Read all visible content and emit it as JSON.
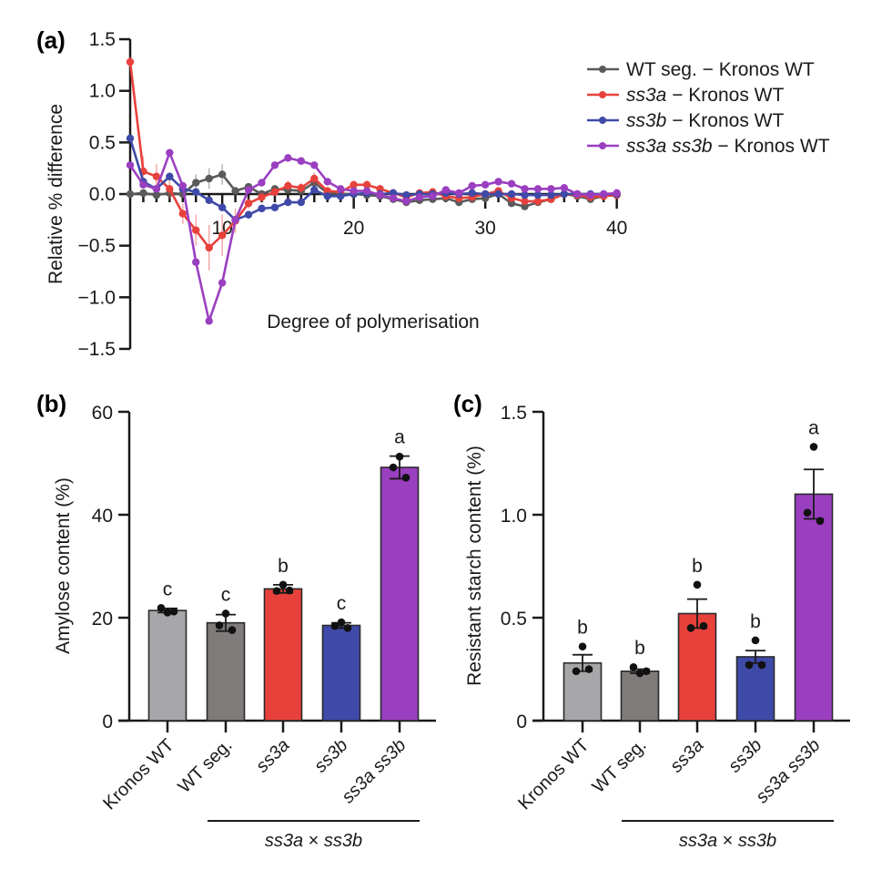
{
  "figure": {
    "panels": [
      "(a)",
      "(b)",
      "(c)"
    ]
  },
  "chart_data": [
    {
      "id": "a",
      "panel_label": "(a)",
      "type": "line",
      "xlabel": "Degree of polymerisation",
      "ylabel": "Relative % difference",
      "xlim": [
        3,
        40
      ],
      "ylim": [
        -1.5,
        1.5
      ],
      "xticks": [
        10,
        20,
        30,
        40
      ],
      "xtick_labels": [
        "10",
        "20",
        "30",
        "40"
      ],
      "yticks": [
        -1.5,
        -1.0,
        -0.5,
        0.0,
        0.5,
        1.0,
        1.5
      ],
      "ytick_labels": [
        "−1.5",
        "−1.0",
        "−0.5",
        "0.0",
        "0.5",
        "1.0",
        "1.5"
      ],
      "grid": false,
      "legend_position": "top-right",
      "x": [
        3,
        4,
        5,
        6,
        7,
        8,
        9,
        10,
        11,
        12,
        13,
        14,
        15,
        16,
        17,
        18,
        19,
        20,
        21,
        22,
        23,
        24,
        25,
        26,
        27,
        28,
        29,
        30,
        31,
        32,
        33,
        34,
        35,
        36,
        37,
        38,
        39,
        40
      ],
      "series": [
        {
          "name": "WT seg. − Kronos WT",
          "name_italic": "",
          "name_rest": "WT seg. − Kronos WT",
          "color": "#5a5a5a",
          "values": [
            0.0,
            0.01,
            -0.01,
            0.01,
            0.0,
            0.11,
            0.15,
            0.19,
            0.03,
            0.07,
            0.0,
            0.05,
            0.04,
            0.03,
            0.11,
            0.01,
            0.0,
            0.0,
            -0.01,
            -0.02,
            -0.05,
            -0.08,
            -0.06,
            -0.05,
            -0.04,
            -0.08,
            -0.05,
            -0.04,
            0.0,
            -0.09,
            -0.12,
            -0.08,
            -0.05,
            0.0,
            -0.02,
            -0.05,
            -0.02,
            -0.01
          ],
          "error": [
            0.01,
            0.02,
            0.03,
            0.03,
            0.03,
            0.08,
            0.1,
            0.1,
            0.04,
            0.03,
            0.03,
            0.03,
            0.03,
            0.03,
            0.04,
            0.03,
            0.02,
            0.02,
            0.02,
            0.02,
            0.03,
            0.03,
            0.03,
            0.02,
            0.02,
            0.03,
            0.02,
            0.02,
            0.02,
            0.03,
            0.03,
            0.02,
            0.02,
            0.02,
            0.02,
            0.02,
            0.02,
            0.02
          ]
        },
        {
          "name": "ss3a − Kronos WT",
          "name_italic": "ss3a",
          "name_rest": " − Kronos WT",
          "color": "#e8413c",
          "values": [
            1.28,
            0.22,
            0.17,
            0.05,
            -0.19,
            -0.35,
            -0.52,
            -0.4,
            -0.26,
            -0.09,
            -0.03,
            0.02,
            0.08,
            0.06,
            0.15,
            0.03,
            0.02,
            0.09,
            0.09,
            0.05,
            0.01,
            -0.03,
            0.01,
            0.02,
            -0.02,
            -0.04,
            -0.03,
            0.0,
            0.03,
            -0.04,
            -0.07,
            -0.07,
            -0.05,
            0.0,
            -0.01,
            -0.03,
            -0.02,
            -0.01
          ],
          "error": [
            0.05,
            0.15,
            0.12,
            0.1,
            0.1,
            0.15,
            0.22,
            0.2,
            0.12,
            0.05,
            0.04,
            0.04,
            0.05,
            0.05,
            0.06,
            0.04,
            0.03,
            0.04,
            0.04,
            0.04,
            0.03,
            0.03,
            0.03,
            0.03,
            0.03,
            0.03,
            0.03,
            0.03,
            0.03,
            0.03,
            0.03,
            0.03,
            0.03,
            0.02,
            0.02,
            0.02,
            0.02,
            0.02
          ]
        },
        {
          "name": "ss3b − Kronos WT",
          "name_italic": "ss3b",
          "name_rest": " − Kronos WT",
          "color": "#3f4aa8",
          "values": [
            0.54,
            0.12,
            0.05,
            0.17,
            0.05,
            0.02,
            -0.06,
            -0.13,
            -0.25,
            -0.2,
            -0.14,
            -0.13,
            -0.08,
            -0.08,
            0.04,
            -0.02,
            -0.02,
            0.0,
            0.01,
            0.0,
            0.01,
            -0.01,
            0.0,
            0.0,
            0.01,
            0.0,
            0.01,
            0.0,
            0.0,
            0.0,
            -0.01,
            -0.01,
            -0.01,
            0.0,
            0.0,
            0.0,
            0.0,
            0.0
          ],
          "error": [
            0.02,
            0.03,
            0.03,
            0.03,
            0.03,
            0.02,
            0.02,
            0.03,
            0.04,
            0.04,
            0.03,
            0.02,
            0.02,
            0.02,
            0.02,
            0.02,
            0.02,
            0.02,
            0.02,
            0.02,
            0.02,
            0.02,
            0.02,
            0.02,
            0.02,
            0.02,
            0.02,
            0.02,
            0.02,
            0.02,
            0.02,
            0.02,
            0.02,
            0.02,
            0.02,
            0.02,
            0.02,
            0.02
          ]
        },
        {
          "name": "ss3a ss3b − Kronos WT",
          "name_italic": "ss3a ss3b",
          "name_rest": " − Kronos WT",
          "color": "#9a3fc0",
          "values": [
            0.28,
            0.09,
            0.05,
            0.4,
            0.08,
            -0.66,
            -1.23,
            -0.86,
            -0.25,
            0.04,
            0.11,
            0.28,
            0.35,
            0.32,
            0.28,
            0.12,
            0.05,
            0.03,
            0.03,
            -0.01,
            -0.04,
            -0.07,
            -0.03,
            -0.02,
            0.04,
            0.01,
            0.08,
            0.09,
            0.12,
            0.1,
            0.05,
            0.05,
            0.05,
            0.06,
            0.0,
            -0.01,
            0.0,
            0.01
          ],
          "error": [
            0.02,
            0.02,
            0.02,
            0.02,
            0.02,
            0.03,
            0.03,
            0.03,
            0.03,
            0.02,
            0.02,
            0.02,
            0.02,
            0.02,
            0.02,
            0.02,
            0.02,
            0.02,
            0.02,
            0.02,
            0.02,
            0.02,
            0.02,
            0.02,
            0.02,
            0.02,
            0.02,
            0.02,
            0.02,
            0.02,
            0.02,
            0.02,
            0.02,
            0.02,
            0.02,
            0.02,
            0.02,
            0.02
          ]
        }
      ]
    },
    {
      "id": "b",
      "panel_label": "(b)",
      "type": "bar",
      "ylabel": "Amylose content (%)",
      "xlabel": "",
      "ylim": [
        0,
        60
      ],
      "yticks": [
        0,
        20,
        40,
        60
      ],
      "ytick_labels": [
        "0",
        "20",
        "40",
        "60"
      ],
      "grid": false,
      "categories": [
        "Kronos WT",
        "WT seg.",
        "ss3a",
        "ss3b",
        "ss3a ss3b"
      ],
      "category_italic": [
        false,
        false,
        true,
        true,
        true
      ],
      "colors": [
        "#a7a6a8",
        "#7f7b7b",
        "#e8413c",
        "#3f4aa8",
        "#9a3fc0"
      ],
      "values": [
        21.4,
        19.0,
        25.6,
        18.5,
        49.2
      ],
      "error": [
        0.4,
        1.6,
        0.8,
        0.5,
        2.2
      ],
      "points": [
        [
          21.0,
          21.9,
          21.2
        ],
        [
          20.8,
          18.5,
          17.6
        ],
        [
          26.4,
          25.2,
          25.3
        ],
        [
          19.1,
          18.4,
          18.0
        ],
        [
          51.3,
          49.2,
          47.2
        ]
      ],
      "significance": [
        "c",
        "c",
        "b",
        "c",
        "a"
      ],
      "group_bracket": {
        "label_italic_a": "ss3a",
        "label_times": " × ",
        "label_italic_b": "ss3b",
        "spans": [
          "WT seg.",
          "ss3a ss3b"
        ]
      }
    },
    {
      "id": "c",
      "panel_label": "(c)",
      "type": "bar",
      "ylabel": "Resistant starch content (%)",
      "xlabel": "",
      "ylim": [
        0,
        1.5
      ],
      "yticks": [
        0,
        0.5,
        1.0,
        1.5
      ],
      "ytick_labels": [
        "0",
        "0.5",
        "1.0",
        "1.5"
      ],
      "grid": false,
      "categories": [
        "Kronos WT",
        "WT seg.",
        "ss3a",
        "ss3b",
        "ss3a ss3b"
      ],
      "category_italic": [
        false,
        false,
        true,
        true,
        true
      ],
      "colors": [
        "#a7a6a8",
        "#7f7b7b",
        "#e8413c",
        "#3f4aa8",
        "#9a3fc0"
      ],
      "values": [
        0.28,
        0.24,
        0.52,
        0.31,
        1.1
      ],
      "error": [
        0.04,
        0.01,
        0.07,
        0.03,
        0.12
      ],
      "points": [
        [
          0.36,
          0.24,
          0.25
        ],
        [
          0.23,
          0.26,
          0.24
        ],
        [
          0.66,
          0.45,
          0.46
        ],
        [
          0.39,
          0.27,
          0.27
        ],
        [
          1.33,
          1.01,
          0.97
        ]
      ],
      "significance": [
        "b",
        "b",
        "b",
        "b",
        "a"
      ],
      "group_bracket": {
        "label_italic_a": "ss3a",
        "label_times": " × ",
        "label_italic_b": "ss3b",
        "spans": [
          "WT seg.",
          "ss3a ss3b"
        ]
      }
    }
  ]
}
